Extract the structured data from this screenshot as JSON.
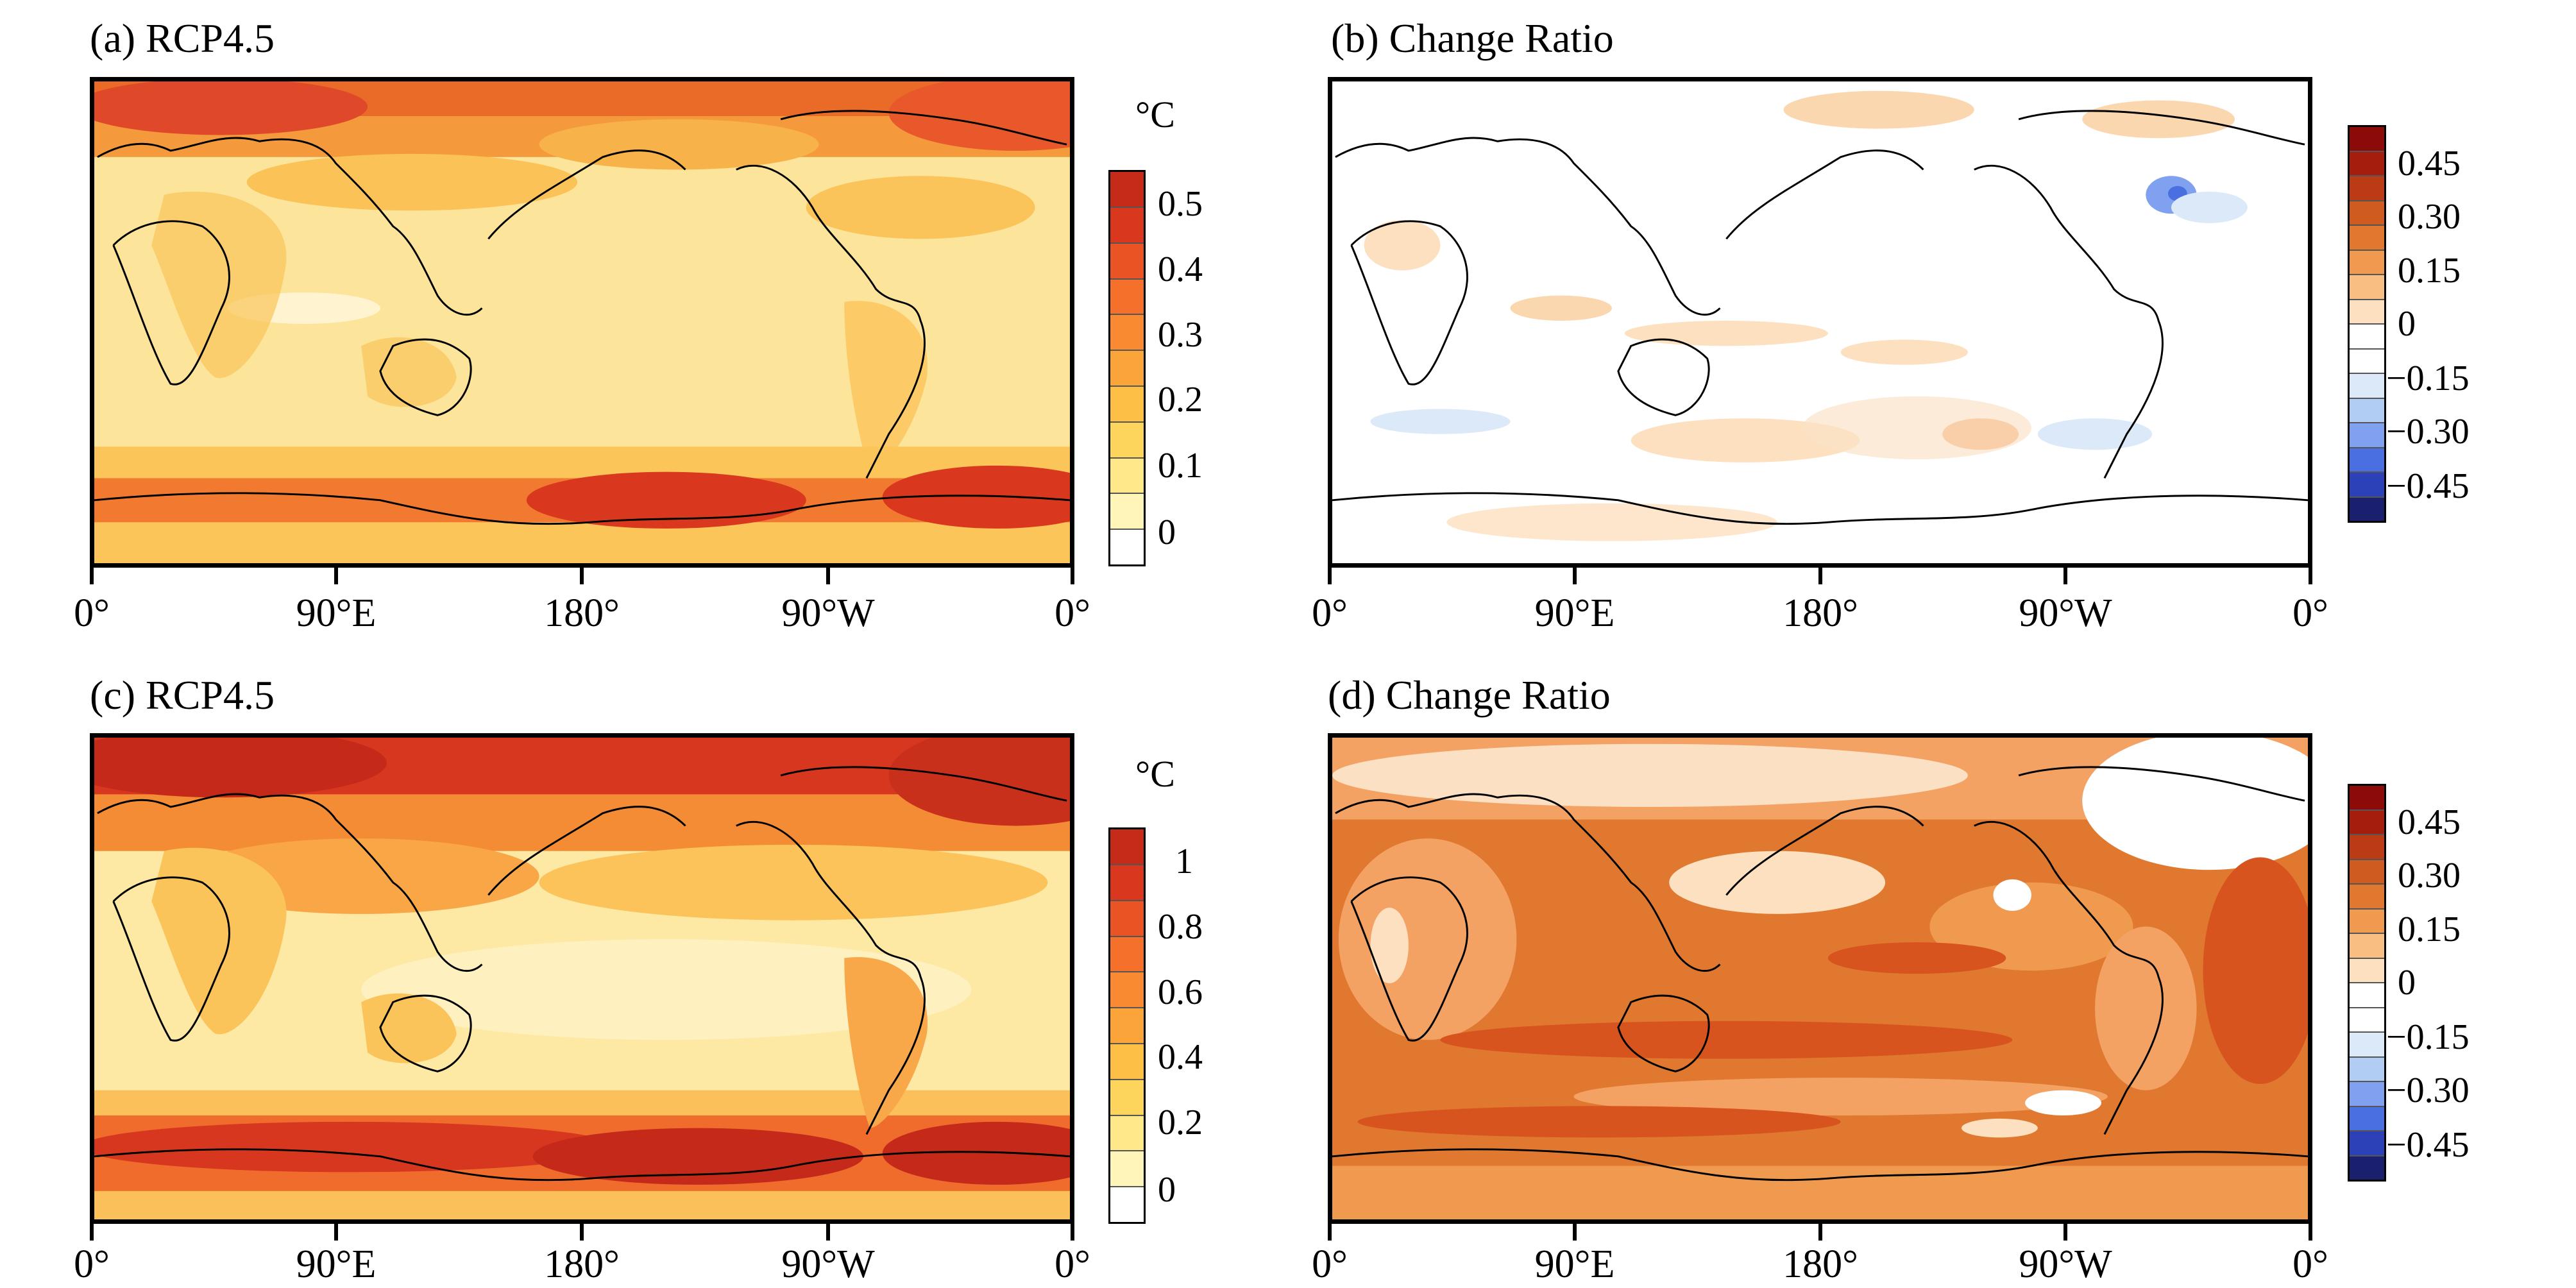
{
  "panels": [
    {
      "title": "(a) RCP4.5",
      "unit": "°C",
      "colorbar_labels": [
        "0",
        "0.1",
        "0.2",
        "0.3",
        "0.4",
        "0.5"
      ],
      "colorbar_colors": [
        "#ffffff",
        "#fff5b8",
        "#ffe88a",
        "#fdd45c",
        "#fdbf45",
        "#fba43a",
        "#f98a32",
        "#f5702a",
        "#ea5324",
        "#d9381f",
        "#c62b1a"
      ]
    },
    {
      "title": "(b) Change Ratio",
      "unit": "",
      "colorbar_labels": [
        "−0.45",
        "−0.30",
        "−0.15",
        "0",
        "0.15",
        "0.30",
        "0.45"
      ],
      "colorbar_colors": [
        "#1a1f6e",
        "#2c40b8",
        "#4a6fe0",
        "#7fa1ef",
        "#b1cdf4",
        "#dbe9f8",
        "#ffffff",
        "#ffffff",
        "#fde0bf",
        "#f8be82",
        "#f09a50",
        "#e07830",
        "#cf5b1f",
        "#bb3b14",
        "#a51d0c",
        "#8c0b08"
      ]
    },
    {
      "title": "(c) RCP4.5",
      "unit": "°C",
      "colorbar_labels": [
        "0",
        "0.2",
        "0.4",
        "0.6",
        "0.8",
        "1"
      ],
      "colorbar_colors": [
        "#ffffff",
        "#fff5b8",
        "#ffe88a",
        "#fdd45c",
        "#fdbf45",
        "#fba43a",
        "#f98a32",
        "#f5702a",
        "#ea5324",
        "#d9381f",
        "#c62b1a"
      ]
    },
    {
      "title": "(d) Change Ratio",
      "unit": "",
      "colorbar_labels": [
        "−0.45",
        "−0.30",
        "−0.15",
        "0",
        "0.15",
        "0.30",
        "0.45"
      ],
      "colorbar_colors": [
        "#1a1f6e",
        "#2c40b8",
        "#4a6fe0",
        "#7fa1ef",
        "#b1cdf4",
        "#dbe9f8",
        "#ffffff",
        "#ffffff",
        "#fde0bf",
        "#f8be82",
        "#f09a50",
        "#e07830",
        "#cf5b1f",
        "#bb3b14",
        "#a51d0c",
        "#8c0b08"
      ]
    }
  ],
  "xticks": [
    "0°",
    "90°E",
    "180°",
    "90°W",
    "0°"
  ]
}
